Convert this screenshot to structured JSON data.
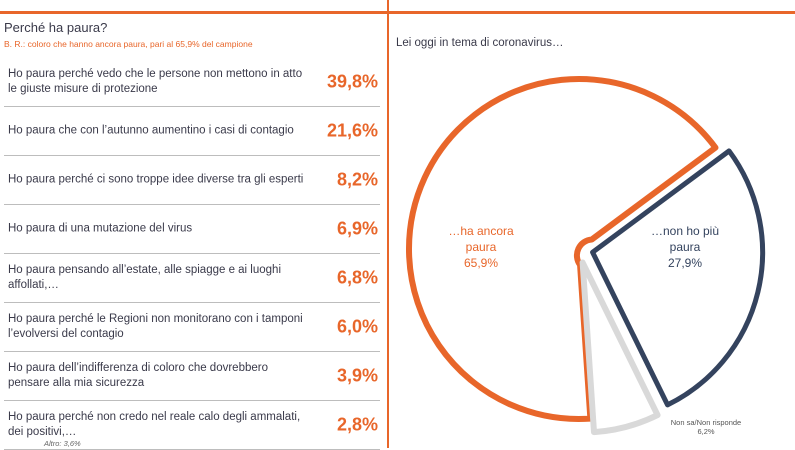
{
  "left_panel": {
    "title": "Perché ha paura?",
    "subtitle": "B. R.: coloro che hanno ancora paura, pari al 65,9% del campione",
    "note": "Altro: 3,6%"
  },
  "right_panel": {
    "question": "Lei oggi in tema di coronavirus…"
  },
  "colors": {
    "accent": "#e8662a",
    "navy": "#34435e",
    "grey": "#d9d9d9",
    "text": "#3a3a4a"
  },
  "chart_data": [
    {
      "type": "table",
      "title": "Perché ha paura?",
      "subtitle": "B. R.: coloro che hanno ancora paura, pari al 65,9% del campione",
      "categories": [
        "Ho paura perché vedo che le persone non mettono in atto le giuste misure di protezione",
        "Ho paura che con l’autunno aumentino i casi di contagio",
        "Ho paura perché ci sono troppe idee diverse tra gli esperti",
        "Ho paura di una mutazione del virus",
        "Ho paura pensando all’estate, alle spiagge e ai luoghi affollati,…",
        "Ho paura perché le Regioni non monitorano con i tamponi l’evolversi del contagio",
        "Ho paura dell’indifferenza di coloro che dovrebbero pensare alla mia sicurezza",
        "Ho paura perché non credo nel reale calo degli ammalati, dei positivi,…"
      ],
      "values": [
        39.8,
        21.6,
        8.2,
        6.9,
        6.8,
        6.0,
        3.9,
        2.8
      ],
      "value_labels": [
        "39,8%",
        "21,6%",
        "8,2%",
        "6,9%",
        "6,8%",
        "6,0%",
        "3,9%",
        "2,8%"
      ]
    },
    {
      "type": "pie",
      "title": "Lei oggi in tema di coronavirus…",
      "slices": [
        {
          "label_line1": "…ha ancora",
          "label_line2": "paura",
          "value": 65.9,
          "value_label": "65,9%",
          "color": "#e8662a"
        },
        {
          "label_line1": "…non ho più",
          "label_line2": "paura",
          "value": 27.9,
          "value_label": "27,9%",
          "color": "#34435e"
        },
        {
          "label_line1": "Non sa/Non risponde",
          "label_line2": "",
          "value": 6.2,
          "value_label": "6,2%",
          "color": "#d9d9d9"
        }
      ]
    }
  ]
}
